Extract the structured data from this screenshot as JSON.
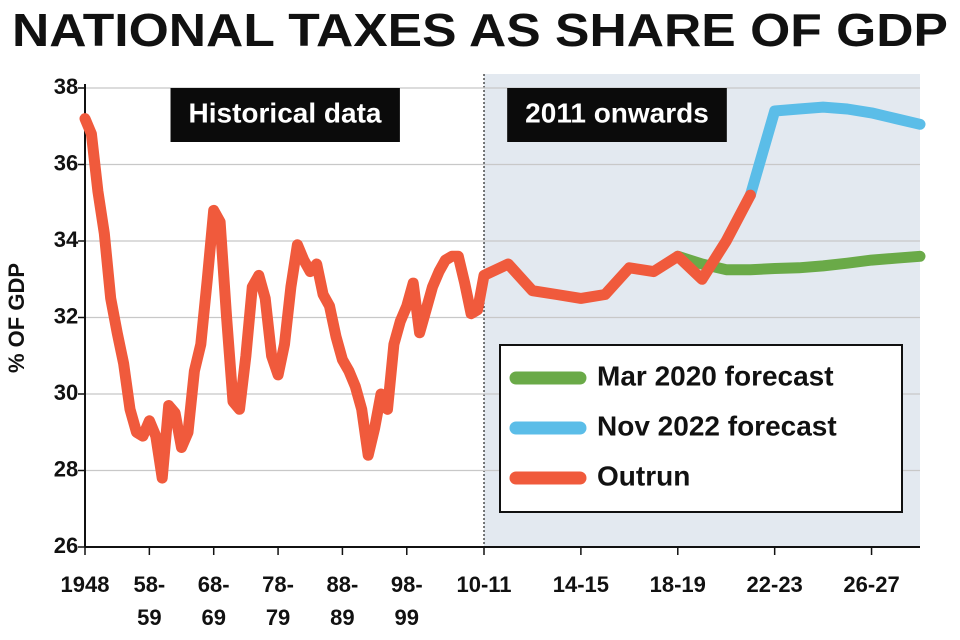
{
  "chart_data": {
    "type": "line",
    "title": "NATIONAL TAXES AS SHARE OF GDP",
    "y_label": "% OF GDP",
    "xlim": [
      1948,
      2028
    ],
    "ylim": [
      26,
      38
    ],
    "yticks": [
      26,
      28,
      30,
      32,
      34,
      36,
      38
    ],
    "xticks": [
      1948,
      {
        "value": 1958,
        "label": "58-\n59"
      },
      {
        "value": 1968,
        "label": "68-\n69"
      },
      {
        "value": 1978,
        "label": "78-\n79"
      },
      {
        "value": 1988,
        "label": "88-\n89"
      },
      {
        "value": 1998,
        "label": "98-\n99"
      },
      {
        "value": 2010,
        "label": "10-11"
      },
      {
        "value": 2014,
        "label": "14-15"
      },
      {
        "value": 2018,
        "label": "18-19"
      },
      {
        "value": 2022,
        "label": "22-23"
      },
      {
        "value": 2026,
        "label": "26-27"
      }
    ],
    "grid": true,
    "legend": "lower right",
    "regions": [
      {
        "label": "Historical data",
        "from": 1948,
        "to": 2010,
        "shaded": false
      },
      {
        "label": "2011 onwards",
        "from": 2010,
        "to": 2028,
        "shaded": true
      }
    ],
    "series": [
      {
        "name": "Mar 2020 forecast",
        "color": "#6aaa48",
        "x": [
          2018,
          2019,
          2020,
          2021,
          2022,
          2023,
          2024,
          2025,
          2026,
          2027,
          2028
        ],
        "values": [
          33.6,
          33.4,
          33.25,
          33.25,
          33.28,
          33.3,
          33.35,
          33.42,
          33.5,
          33.55,
          33.6
        ]
      },
      {
        "name": "Nov 2022 forecast",
        "color": "#5bbde8",
        "x": [
          2021,
          2022,
          2023,
          2024,
          2025,
          2026,
          2027,
          2028
        ],
        "values": [
          35.2,
          37.4,
          37.45,
          37.5,
          37.45,
          37.35,
          37.2,
          37.05
        ]
      },
      {
        "name": "Outrun",
        "color": "#f05a3c",
        "x": [
          1948,
          1949,
          1950,
          1951,
          1952,
          1953,
          1954,
          1955,
          1956,
          1957,
          1958,
          1959,
          1960,
          1961,
          1962,
          1963,
          1964,
          1965,
          1966,
          1967,
          1968,
          1969,
          1970,
          1971,
          1972,
          1973,
          1974,
          1975,
          1976,
          1977,
          1978,
          1979,
          1980,
          1981,
          1982,
          1983,
          1984,
          1985,
          1986,
          1987,
          1988,
          1989,
          1990,
          1991,
          1992,
          1993,
          1994,
          1995,
          1996,
          1997,
          1998,
          1999,
          2000,
          2001,
          2002,
          2003,
          2004,
          2005,
          2006,
          2007,
          2008,
          2009,
          2010,
          2011,
          2012,
          2013,
          2014,
          2015,
          2016,
          2017,
          2018,
          2019,
          2020,
          2021
        ],
        "values": [
          37.2,
          36.8,
          35.3,
          34.2,
          32.5,
          31.6,
          30.8,
          29.6,
          29.0,
          28.9,
          29.3,
          28.9,
          27.8,
          29.7,
          29.5,
          28.6,
          29.0,
          30.6,
          31.3,
          33.0,
          34.8,
          34.5,
          32.0,
          29.8,
          29.6,
          31.0,
          32.8,
          33.1,
          32.5,
          31.0,
          30.5,
          31.3,
          32.8,
          33.9,
          33.5,
          33.2,
          33.4,
          32.6,
          32.3,
          31.5,
          30.9,
          30.6,
          30.2,
          29.6,
          28.4,
          29.1,
          30.0,
          29.6,
          31.3,
          31.9,
          32.3,
          32.9,
          31.6,
          32.2,
          32.8,
          33.2,
          33.5,
          33.6,
          33.6,
          32.9,
          32.1,
          32.2,
          33.1,
          33.4,
          32.7,
          32.6,
          32.5,
          32.6,
          33.3,
          33.2,
          33.6,
          33.0,
          34.0,
          35.2
        ]
      }
    ]
  }
}
